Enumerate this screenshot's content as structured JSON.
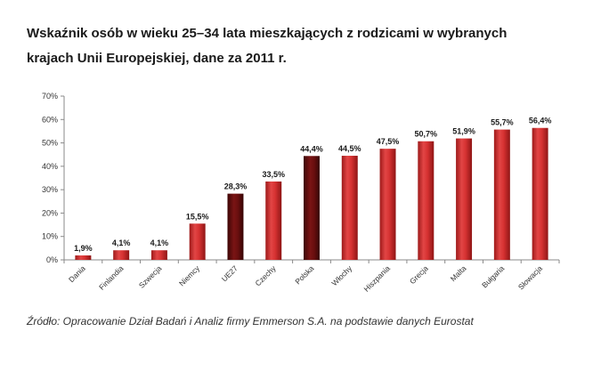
{
  "title_line1": "Wskaźnik osób w wieku 25–34 lata mieszkających z rodzicami w wybranych",
  "title_line2": "krajach Unii Europejskiej, dane za 2011 r.",
  "source": "Źródło: Opracowanie  Dział Badań i Analiz firmy Emmerson S.A. na podstawie danych Eurostat",
  "colors": {
    "bar_default": "#d32f2f",
    "bar_highlight": "#6e0f0f"
  },
  "chart_data": {
    "type": "bar",
    "title": "Wskaźnik osób w wieku 25–34 lata mieszkających z rodzicami w wybranych krajach Unii Europejskiej, dane za 2011 r.",
    "categories": [
      "Dania",
      "Finlandia",
      "Szwecja",
      "Niemcy",
      "UE27",
      "Czechy",
      "Polska",
      "Włochy",
      "Hiszpania",
      "Grecja",
      "Malta",
      "Bułgaria",
      "Słowacja"
    ],
    "values": [
      1.9,
      4.1,
      4.1,
      15.5,
      28.3,
      33.5,
      44.4,
      44.5,
      47.5,
      50.7,
      51.9,
      55.7,
      56.4
    ],
    "data_labels": [
      "1,9%",
      "4,1%",
      "4,1%",
      "15,5%",
      "28,3%",
      "33,5%",
      "44,4%",
      "44,5%",
      "47,5%",
      "50,7%",
      "51,9%",
      "55,7%",
      "56,4%"
    ],
    "highlighted": [
      "UE27",
      "Polska"
    ],
    "ylim": [
      0,
      70
    ],
    "yticks": [
      0,
      10,
      20,
      30,
      40,
      50,
      60,
      70
    ],
    "ytick_labels": [
      "0%",
      "10%",
      "20%",
      "30%",
      "40%",
      "50%",
      "60%",
      "70%"
    ],
    "grid": false,
    "xlabel": "",
    "ylabel": ""
  }
}
